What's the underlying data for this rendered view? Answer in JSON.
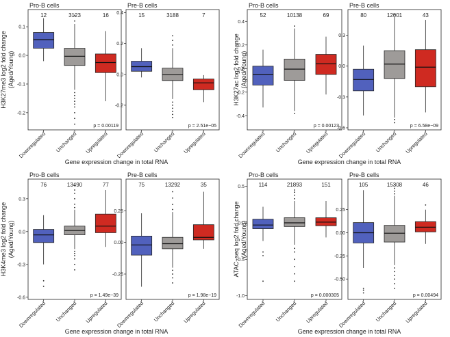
{
  "chart_data": [
    {
      "type": "box",
      "row": 0,
      "col": 0,
      "ylabel": [
        "H3K27me3 log2  fold change",
        "(Aged/Young)"
      ],
      "xlabel": "Gene  expression change in total RNA",
      "categories": [
        "Downregulated",
        "Unchanged",
        "Upregulated"
      ],
      "colors": [
        "#5161bd",
        "#9e9b99",
        "#cf2a21"
      ],
      "panels": [
        {
          "title": "Pro-B cells",
          "counts": [
            "12",
            "3123",
            "16"
          ],
          "ylim": [
            -0.26,
            0.16
          ],
          "yticks": [
            -0.2,
            -0.1,
            0.0,
            0.1
          ],
          "ytick_labels": [
            "-0.2",
            "-0.1",
            "0.0",
            "0.1"
          ],
          "pvalue": "p = 0.00119",
          "boxes": [
            {
              "q1": 0.025,
              "median": 0.055,
              "q3": 0.08,
              "whislo": -0.02,
              "whishi": 0.13,
              "fliers": []
            },
            {
              "q1": -0.035,
              "median": -0.003,
              "q3": 0.025,
              "whislo": -0.12,
              "whishi": 0.11,
              "fliers": [
                -0.13,
                -0.14,
                -0.15,
                -0.16,
                -0.17,
                -0.18,
                -0.2,
                -0.22,
                -0.24,
                0.12,
                0.14
              ]
            },
            {
              "q1": -0.06,
              "median": -0.025,
              "q3": 0.005,
              "whislo": -0.16,
              "whishi": 0.085,
              "fliers": []
            }
          ]
        },
        {
          "title": "Pre-B cells",
          "counts": [
            "15",
            "3188",
            "7"
          ],
          "ylim": [
            -0.36,
            0.42
          ],
          "yticks": [
            -0.2,
            0.0,
            0.2,
            0.4
          ],
          "ytick_labels": [
            "-0.2",
            "0.0",
            "0.2",
            "0.4"
          ],
          "pvalue": "p = 2.51e−05",
          "boxes": [
            {
              "q1": 0.02,
              "median": 0.05,
              "q3": 0.085,
              "whislo": -0.02,
              "whishi": 0.17,
              "fliers": []
            },
            {
              "q1": -0.04,
              "median": -0.003,
              "q3": 0.04,
              "whislo": -0.16,
              "whishi": 0.17,
              "fliers": [
                -0.18,
                -0.2,
                -0.22,
                -0.24,
                -0.26,
                -0.28,
                0.19,
                0.22,
                0.25
              ]
            },
            {
              "q1": -0.1,
              "median": -0.055,
              "q3": -0.03,
              "whislo": -0.18,
              "whishi": -0.005,
              "fliers": []
            }
          ]
        }
      ]
    },
    {
      "type": "box",
      "row": 0,
      "col": 1,
      "ylabel": [
        "H3K27ac log2  fold change",
        "(Aged/Young)"
      ],
      "xlabel": "Gene  expression change in total RNA",
      "categories": [
        "Downregulated",
        "Unchanged",
        "Upregulated"
      ],
      "colors": [
        "#5161bd",
        "#9e9b99",
        "#cf2a21"
      ],
      "panels": [
        {
          "title": "Pro-B cells",
          "counts": [
            "52",
            "10138",
            "69"
          ],
          "ylim": [
            -0.52,
            0.5
          ],
          "yticks": [
            -0.4,
            -0.2,
            0.0,
            0.2,
            0.4
          ],
          "ytick_labels": [
            "-0.4",
            "-0.2",
            "0.0",
            "0.2",
            "0.4"
          ],
          "pvalue": "p = 0.00123",
          "boxes": [
            {
              "q1": -0.14,
              "median": -0.05,
              "q3": 0.02,
              "whislo": -0.33,
              "whishi": 0.16,
              "fliers": []
            },
            {
              "q1": -0.1,
              "median": -0.005,
              "q3": 0.08,
              "whislo": -0.36,
              "whishi": 0.34,
              "fliers": [
                -0.38,
                0.36
              ]
            },
            {
              "q1": -0.05,
              "median": 0.04,
              "q3": 0.12,
              "whislo": -0.22,
              "whishi": 0.27,
              "fliers": []
            }
          ]
        },
        {
          "title": "Pre-B cells",
          "counts": [
            "80",
            "12001",
            "43"
          ],
          "ylim": [
            -0.62,
            0.55
          ],
          "yticks": [
            -0.6,
            -0.3,
            0.0,
            0.3
          ],
          "ytick_labels": [
            "-0.6",
            "-0.3",
            "0.0",
            "0.3"
          ],
          "pvalue": "p = 6.58e−09",
          "boxes": [
            {
              "q1": -0.24,
              "median": -0.13,
              "q3": -0.03,
              "whislo": -0.48,
              "whishi": 0.2,
              "fliers": []
            },
            {
              "q1": -0.12,
              "median": 0.02,
              "q3": 0.15,
              "whislo": -0.5,
              "whishi": 0.48,
              "fliers": [
                -0.52,
                -0.55,
                0.5
              ]
            },
            {
              "q1": -0.2,
              "median": -0.01,
              "q3": 0.16,
              "whislo": -0.45,
              "whishi": 0.45,
              "fliers": []
            }
          ]
        }
      ]
    },
    {
      "type": "box",
      "row": 1,
      "col": 0,
      "ylabel": [
        "H3K4me3 log2  fold change",
        "(Aged/Young)"
      ],
      "xlabel": "Gene  expression change in total RNA",
      "categories": [
        "Downregulated",
        "Unchanged",
        "Upregulated"
      ],
      "colors": [
        "#5161bd",
        "#9e9b99",
        "#cf2a21"
      ],
      "panels": [
        {
          "title": "Pro-B cells",
          "counts": [
            "76",
            "13490",
            "77"
          ],
          "ylim": [
            -0.62,
            0.48
          ],
          "yticks": [
            -0.6,
            -0.3,
            0.0,
            0.3
          ],
          "ytick_labels": [
            "-0.6",
            "-0.3",
            "0.0",
            "0.3"
          ],
          "pvalue": "p = 1.49e−39",
          "boxes": [
            {
              "q1": -0.1,
              "median": -0.03,
              "q3": 0.02,
              "whislo": -0.3,
              "whishi": 0.15,
              "fliers": [
                -0.5,
                -0.45
              ]
            },
            {
              "q1": -0.03,
              "median": 0.01,
              "q3": 0.05,
              "whislo": -0.16,
              "whishi": 0.2,
              "fliers": [
                -0.18,
                -0.2,
                -0.22,
                -0.25,
                -0.3,
                -0.35,
                0.22,
                0.25,
                0.3,
                0.35,
                0.38,
                0.42
              ]
            },
            {
              "q1": -0.01,
              "median": 0.05,
              "q3": 0.16,
              "whislo": -0.14,
              "whishi": 0.38,
              "fliers": []
            }
          ]
        },
        {
          "title": "Pre-B cells",
          "counts": [
            "75",
            "13292",
            "35"
          ],
          "ylim": [
            -0.45,
            0.5
          ],
          "yticks": [
            -0.25,
            0.0,
            0.25
          ],
          "ytick_labels": [
            "-0.25",
            "0.00",
            "0.25"
          ],
          "pvalue": "p = 1.98e−19",
          "boxes": [
            {
              "q1": -0.1,
              "median": -0.02,
              "q3": 0.05,
              "whislo": -0.35,
              "whishi": 0.23,
              "fliers": []
            },
            {
              "q1": -0.05,
              "median": -0.01,
              "q3": 0.04,
              "whislo": -0.2,
              "whishi": 0.24,
              "fliers": [
                -0.22,
                -0.25,
                -0.28,
                -0.32,
                0.26,
                0.3,
                0.35,
                0.4
              ]
            },
            {
              "q1": 0.02,
              "median": 0.04,
              "q3": 0.14,
              "whislo": -0.05,
              "whishi": 0.4,
              "fliers": []
            }
          ]
        }
      ]
    },
    {
      "type": "box",
      "row": 1,
      "col": 1,
      "ylabel": [
        "ATAC−seq log2  fold change",
        "(Aged/Young)"
      ],
      "xlabel": "Gene  expression change in total RNA",
      "categories": [
        "Downregulated",
        "Unchanged",
        "Upregulated"
      ],
      "colors": [
        "#5161bd",
        "#9e9b99",
        "#cf2a21"
      ],
      "panels": [
        {
          "title": "Pro-B cells",
          "counts": [
            "114",
            "21893",
            "151"
          ],
          "ylim": [
            -1.05,
            0.6
          ],
          "yticks": [
            -1.0,
            -0.5,
            0.0,
            0.5
          ],
          "ytick_labels": [
            "-1.0",
            "-0.5",
            "0.0",
            "0.5"
          ],
          "pvalue": "p = 0.000305",
          "boxes": [
            {
              "q1": -0.08,
              "median": -0.03,
              "q3": 0.05,
              "whislo": -0.25,
              "whishi": 0.22,
              "fliers": [
                -0.4,
                -0.45,
                -0.8
              ]
            },
            {
              "q1": -0.05,
              "median": 0.0,
              "q3": 0.07,
              "whislo": -0.3,
              "whishi": 0.3,
              "fliers": [
                -0.35,
                -0.4,
                -0.5,
                -0.6,
                -0.7,
                -0.8,
                0.33,
                0.38,
                0.42,
                0.45
              ]
            },
            {
              "q1": -0.04,
              "median": 0.01,
              "q3": 0.07,
              "whislo": -0.2,
              "whishi": 0.3,
              "fliers": []
            }
          ]
        },
        {
          "title": "Pre-B cells",
          "counts": [
            "105",
            "15308",
            "46"
          ],
          "ylim": [
            -0.72,
            0.58
          ],
          "yticks": [
            -0.5,
            -0.25,
            0.0,
            0.25
          ],
          "ytick_labels": [
            "-0.50",
            "-0.25",
            "0.00",
            "0.25"
          ],
          "pvalue": "p = 0.00494",
          "boxes": [
            {
              "q1": -0.11,
              "median": 0.0,
              "q3": 0.11,
              "whislo": -0.38,
              "whishi": 0.46,
              "fliers": [
                -0.6,
                -0.62,
                -0.65
              ]
            },
            {
              "q1": -0.1,
              "median": -0.005,
              "q3": 0.08,
              "whislo": -0.35,
              "whishi": 0.4,
              "fliers": [
                -0.38,
                -0.42,
                -0.46,
                -0.5,
                -0.55,
                -0.6,
                0.42,
                0.45,
                0.48,
                0.52
              ]
            },
            {
              "q1": 0.01,
              "median": 0.06,
              "q3": 0.12,
              "whislo": -0.12,
              "whishi": 0.25,
              "fliers": [
                0.3
              ]
            }
          ]
        }
      ]
    }
  ]
}
